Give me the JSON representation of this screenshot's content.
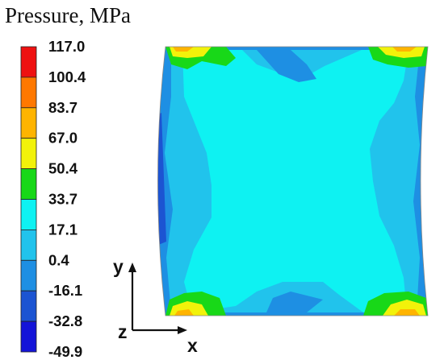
{
  "chart_data": {
    "type": "heatmap",
    "title": "Pressure, MPa",
    "colorbar": {
      "ticks": [
        "117.0",
        "100.4",
        "83.7",
        "67.0",
        "50.4",
        "33.7",
        "17.1",
        "0.4",
        "-16.1",
        "-32.8",
        "-49.9"
      ],
      "range": [
        -49.9,
        117.0
      ],
      "bands": [
        {
          "from": -49.9,
          "to": -32.8,
          "color": "#1414d8"
        },
        {
          "from": -32.8,
          "to": -16.1,
          "color": "#1c54d2"
        },
        {
          "from": -16.1,
          "to": 0.4,
          "color": "#1e8fe3"
        },
        {
          "from": 0.4,
          "to": 17.1,
          "color": "#21c3ec"
        },
        {
          "from": 17.1,
          "to": 33.7,
          "color": "#0ef2f2"
        },
        {
          "from": 33.7,
          "to": 50.4,
          "color": "#18d818"
        },
        {
          "from": 50.4,
          "to": 67.0,
          "color": "#f2f20a"
        },
        {
          "from": 67.0,
          "to": 83.7,
          "color": "#ffb400"
        },
        {
          "from": 83.7,
          "to": 100.4,
          "color": "#ff7800"
        },
        {
          "from": 100.4,
          "to": 117.0,
          "color": "#ee1111"
        }
      ]
    },
    "axes": {
      "x": "x",
      "y": "y",
      "z": "z"
    }
  }
}
